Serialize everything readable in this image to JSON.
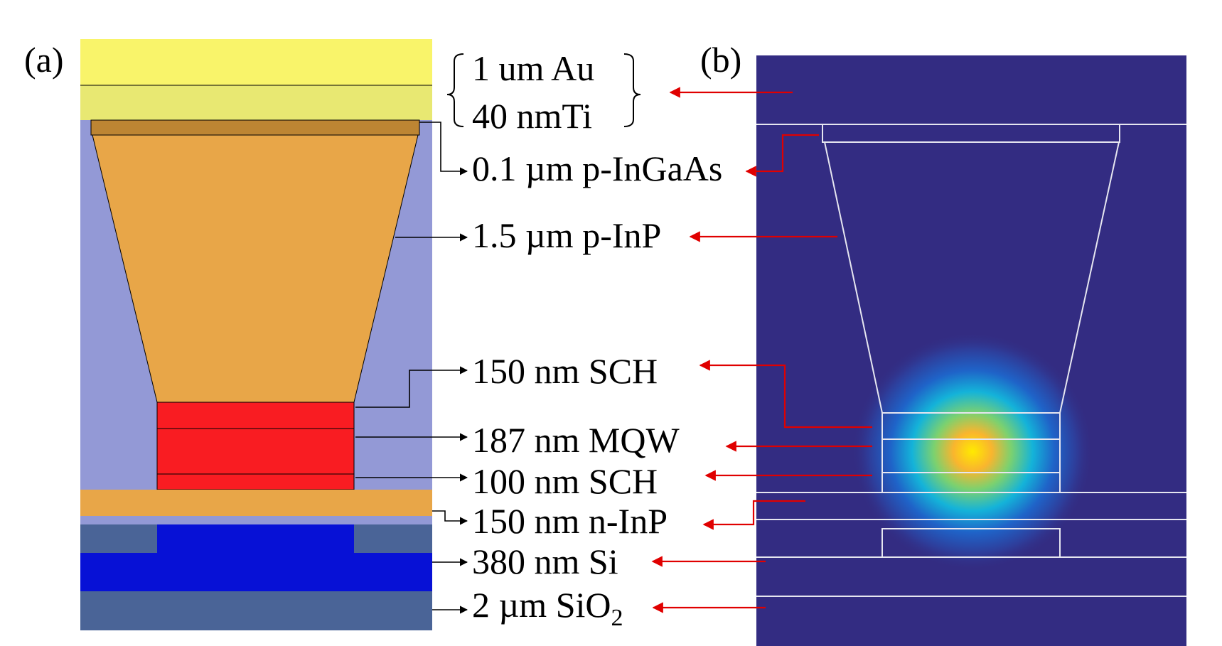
{
  "panels": {
    "a": {
      "tag": "(a)"
    },
    "b": {
      "tag": "(b)"
    }
  },
  "labels": {
    "au": "1 um Au",
    "ti": "40 nmTi",
    "ingaas": "0.1 µm p-InGaAs",
    "inp_p": "1.5 µm p-InP",
    "sch_top": "150 nm SCH",
    "mqw": "187 nm MQW",
    "sch_bottom": "100 nm SCH",
    "inp_n": "150 nm n-InP",
    "si": "380 nm Si",
    "sio2_main": "2 µm SiO",
    "sio2_sub": "2"
  },
  "colors": {
    "au": "#f9f46a",
    "ti": "#e8e872",
    "cladding": "#9399d6",
    "ingaas": "#bd8533",
    "inp": "#e8a648",
    "active": "#f91c22",
    "si": "#0711d6",
    "sio2": "#4a6497",
    "mode_background": "#332c82",
    "mode_outline": "#e6e6f0",
    "arrow_red": "#e00000"
  }
}
